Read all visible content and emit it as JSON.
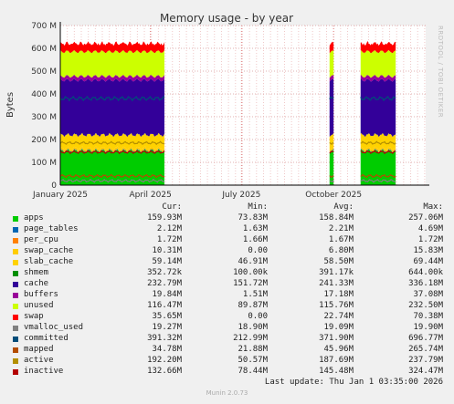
{
  "chart_data": {
    "type": "area",
    "title": "Memory usage - by year",
    "ylabel": "Bytes",
    "yticks": [
      "0",
      "100 M",
      "200 M",
      "300 M",
      "400 M",
      "500 M",
      "600 M",
      "700 M"
    ],
    "ylim": [
      0,
      700
    ],
    "xticks": [
      {
        "label": "January 2025",
        "day": 0
      },
      {
        "label": "April 2025",
        "day": 90
      },
      {
        "label": "July 2025",
        "day": 181
      },
      {
        "label": "October 2025",
        "day": 273
      }
    ],
    "header": {
      "cur": "Cur:",
      "min": "Min:",
      "avg": "Avg:",
      "max": "Max:"
    },
    "series": [
      {
        "name": "apps",
        "color": "#00cc00",
        "cur": "159.93M",
        "min": "73.83M",
        "avg": "158.84M",
        "max": "257.06M",
        "v": 150
      },
      {
        "name": "page_tables",
        "color": "#0066b3",
        "cur": "2.12M",
        "min": "1.63M",
        "avg": "2.21M",
        "max": "4.69M",
        "v": 2
      },
      {
        "name": "per_cpu",
        "color": "#ff8000",
        "cur": "1.72M",
        "min": "1.66M",
        "avg": "1.67M",
        "max": "1.72M",
        "v": 2
      },
      {
        "name": "swap_cache",
        "color": "#ffcc00",
        "cur": "10.31M",
        "min": "0.00",
        "avg": "6.80M",
        "max": "15.83M",
        "v": 8
      },
      {
        "name": "slab_cache",
        "color": "#ffd200",
        "cur": "59.14M",
        "min": "46.91M",
        "avg": "58.50M",
        "max": "69.44M",
        "v": 58
      },
      {
        "name": "shmem",
        "color": "#008f00",
        "cur": "352.72k",
        "min": "100.00k",
        "avg": "391.17k",
        "max": "644.00k",
        "v": 0.4
      },
      {
        "name": "cache",
        "color": "#330099",
        "cur": "232.79M",
        "min": "151.72M",
        "avg": "241.33M",
        "max": "336.18M",
        "v": 240
      },
      {
        "name": "buffers",
        "color": "#990099",
        "cur": "19.84M",
        "min": "1.51M",
        "avg": "17.18M",
        "max": "37.08M",
        "v": 17
      },
      {
        "name": "unused",
        "color": "#ccff00",
        "cur": "116.47M",
        "min": "89.87M",
        "avg": "115.76M",
        "max": "232.50M",
        "v": 108
      },
      {
        "name": "swap",
        "color": "#ff0000",
        "cur": "35.65M",
        "min": "0.00",
        "avg": "22.74M",
        "max": "70.38M",
        "v": 30
      },
      {
        "name": "vmalloc_used",
        "color": "#808080",
        "cur": "19.27M",
        "min": "18.90M",
        "avg": "19.09M",
        "max": "19.90M",
        "v": 19
      },
      {
        "name": "committed",
        "color": "#004d7a",
        "cur": "391.32M",
        "min": "212.99M",
        "avg": "371.90M",
        "max": "696.77M",
        "v": 380
      },
      {
        "name": "mapped",
        "color": "#b34d00",
        "cur": "34.78M",
        "min": "21.88M",
        "avg": "45.96M",
        "max": "265.74M",
        "v": 40
      },
      {
        "name": "active",
        "color": "#b38f00",
        "cur": "192.20M",
        "min": "50.57M",
        "avg": "187.69M",
        "max": "237.79M",
        "v": 185
      },
      {
        "name": "inactive",
        "color": "#b30000",
        "cur": "132.66M",
        "min": "78.44M",
        "avg": "145.48M",
        "max": "324.47M",
        "v": 145
      }
    ],
    "data_ranges_days": [
      [
        0,
        104
      ],
      [
        269,
        273
      ],
      [
        300,
        335
      ]
    ]
  },
  "last_update": "Last update:  Thu Jan  1 03:35:00 2026",
  "munin_version": "Munin 2.0.73",
  "rrdtool_label": "RRDTOOL / TOBI OETIKER"
}
